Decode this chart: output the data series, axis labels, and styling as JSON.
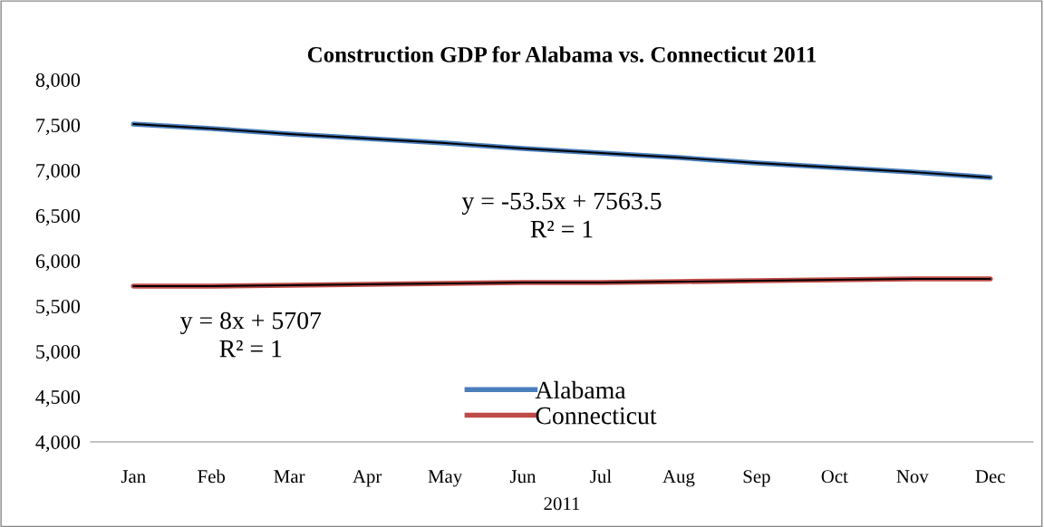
{
  "chart_data": {
    "type": "line",
    "title": "Construction GDP for Alabama vs. Connecticut 2011",
    "xlabel": "2011",
    "categories": [
      "Jan",
      "Feb",
      "Mar",
      "Apr",
      "May",
      "Jun",
      "Jul",
      "Aug",
      "Sep",
      "Oct",
      "Nov",
      "Dec"
    ],
    "series": [
      {
        "name": "Alabama",
        "color": "#4a7ebb",
        "values": [
          7510,
          7460,
          7400,
          7350,
          7300,
          7240,
          7190,
          7140,
          7080,
          7030,
          6980,
          6920
        ]
      },
      {
        "name": "Connecticut",
        "color": "#be4b48",
        "values": [
          5720,
          5720,
          5730,
          5740,
          5750,
          5760,
          5760,
          5770,
          5780,
          5790,
          5800,
          5800
        ]
      },
      {
        "color": "#000000",
        "values": [
          7510,
          7460,
          7400,
          7350,
          7300,
          7240,
          7190,
          7140,
          7080,
          7030,
          6980,
          6920
        ]
      },
      {
        "color": "#000000",
        "values": [
          5720,
          5720,
          5730,
          5740,
          5750,
          5760,
          5760,
          5770,
          5780,
          5790,
          5800,
          5800
        ]
      }
    ],
    "ylim": [
      4000,
      8000
    ],
    "yticks": [
      {
        "value": 4000,
        "label": "4,000"
      },
      {
        "value": 4500,
        "label": "4,500"
      },
      {
        "value": 5000,
        "label": "5,000"
      },
      {
        "value": 5500,
        "label": "5,500"
      },
      {
        "value": 6000,
        "label": "6,000"
      },
      {
        "value": 6500,
        "label": "6,500"
      },
      {
        "value": 7000,
        "label": "7,000"
      },
      {
        "value": 7500,
        "label": "7,500"
      },
      {
        "value": 8000,
        "label": "8,000"
      }
    ],
    "annotations": [
      "y = -53.5x + 7563.5\nR² = 1",
      "y = 8x + 5707\nR² = 1"
    ],
    "legend": "bottom",
    "grid": false
  }
}
